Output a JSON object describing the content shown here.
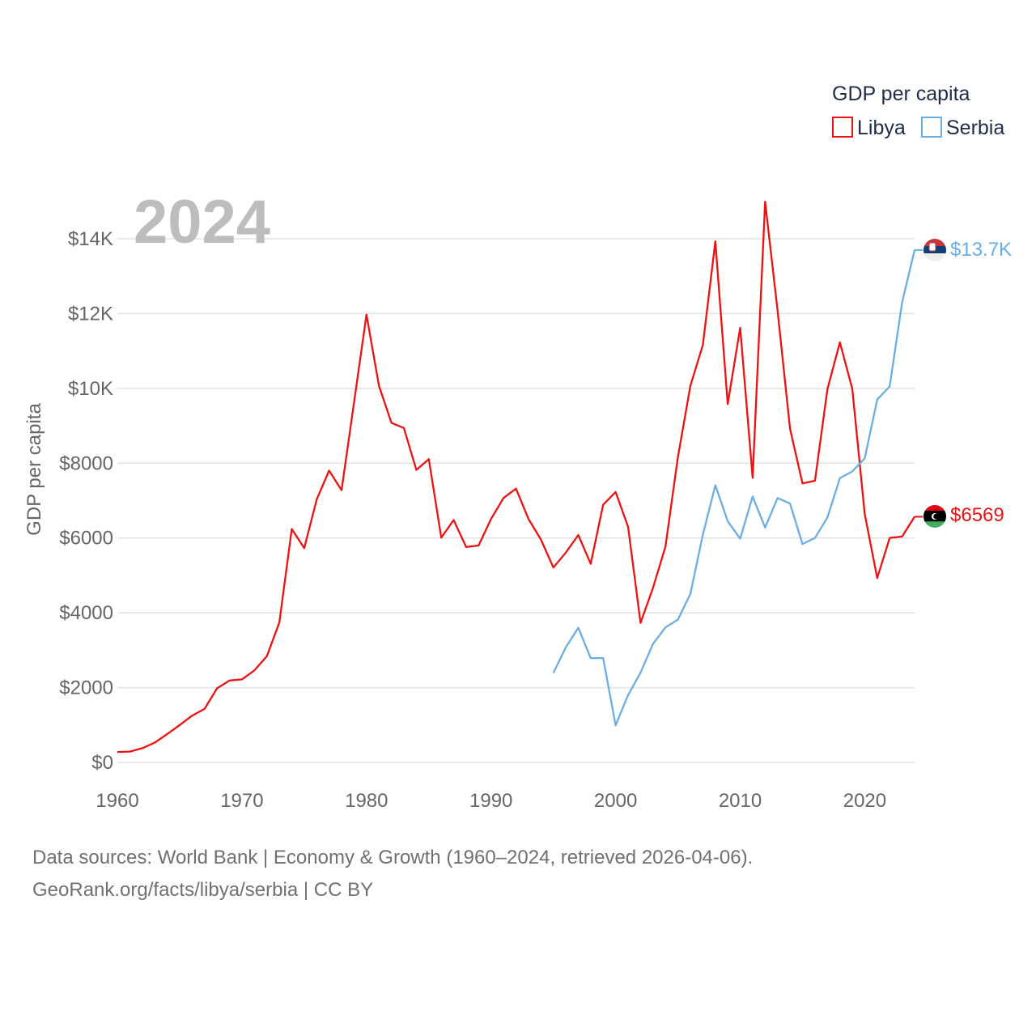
{
  "legend": {
    "title": "GDP per capita",
    "items": [
      {
        "label": "Libya",
        "color": "#ee1111"
      },
      {
        "label": "Serbia",
        "color": "#6aaee6"
      }
    ]
  },
  "year_label": "2024",
  "end_labels": {
    "libya": "$6569",
    "serbia": "$13.7K"
  },
  "footer": {
    "line1": "Data sources: World Bank | Economy & Growth (1960–2024, retrieved 2026-04-06).",
    "line2": "GeoRank.org/facts/libya/serbia | CC BY"
  },
  "chart_data": {
    "type": "line",
    "title": "GDP per capita",
    "xlabel": "",
    "ylabel": "GDP per capita",
    "xlim": [
      1960,
      2024
    ],
    "ylim": [
      0,
      15000
    ],
    "x_ticks": [
      1960,
      1970,
      1980,
      1990,
      2000,
      2010,
      2020
    ],
    "x_tick_labels": [
      "1960",
      "1970",
      "1980",
      "1990",
      "2000",
      "2010",
      "2020"
    ],
    "y_ticks": [
      0,
      2000,
      4000,
      6000,
      8000,
      10000,
      12000,
      14000
    ],
    "y_tick_labels": [
      "$0",
      "$2000",
      "$4000",
      "$6000",
      "$8000",
      "$10K",
      "$12K",
      "$14K"
    ],
    "grid": true,
    "series": [
      {
        "name": "Libya",
        "color": "#ee1111",
        "x": [
          1960,
          1961,
          1962,
          1963,
          1964,
          1965,
          1966,
          1967,
          1968,
          1969,
          1970,
          1971,
          1972,
          1973,
          1974,
          1975,
          1976,
          1977,
          1978,
          1979,
          1980,
          1981,
          1982,
          1983,
          1984,
          1985,
          1986,
          1987,
          1988,
          1989,
          1990,
          1991,
          1992,
          1993,
          1994,
          1995,
          1996,
          1997,
          1998,
          1999,
          2000,
          2001,
          2002,
          2003,
          2004,
          2005,
          2006,
          2007,
          2008,
          2009,
          2010,
          2011,
          2012,
          2013,
          2014,
          2015,
          2016,
          2017,
          2018,
          2019,
          2020,
          2021,
          2022,
          2023,
          2024
        ],
        "values": [
          280,
          290,
          380,
          530,
          760,
          1000,
          1250,
          1430,
          1980,
          2190,
          2220,
          2460,
          2840,
          3740,
          6240,
          5730,
          7030,
          7800,
          7280,
          9620,
          11970,
          10070,
          9080,
          8940,
          7820,
          8110,
          6010,
          6480,
          5760,
          5800,
          6510,
          7070,
          7320,
          6510,
          5960,
          5210,
          5610,
          6080,
          5310,
          6890,
          7230,
          6300,
          3730,
          4670,
          5770,
          8170,
          10070,
          11160,
          13930,
          9580,
          11620,
          7610,
          14990,
          12080,
          8920,
          7460,
          7530,
          9980,
          11230,
          9990,
          6640,
          4930,
          6000,
          6040,
          6569
        ]
      },
      {
        "name": "Serbia",
        "color": "#6aaee6",
        "x": [
          1995,
          1996,
          1997,
          1998,
          1999,
          2000,
          2001,
          2002,
          2003,
          2004,
          2005,
          2006,
          2007,
          2008,
          2009,
          2010,
          2011,
          2012,
          2013,
          2014,
          2015,
          2016,
          2017,
          2018,
          2019,
          2020,
          2021,
          2022,
          2023,
          2024
        ],
        "values": [
          2390,
          3080,
          3600,
          2790,
          2790,
          990,
          1800,
          2400,
          3170,
          3610,
          3820,
          4510,
          6090,
          7410,
          6450,
          5980,
          7110,
          6280,
          7070,
          6920,
          5840,
          6000,
          6550,
          7600,
          7780,
          8130,
          9700,
          10050,
          12300,
          13700
        ]
      }
    ]
  }
}
